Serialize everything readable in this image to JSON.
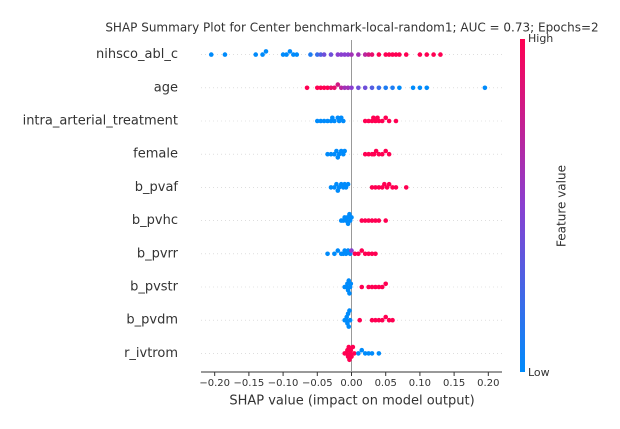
{
  "chart_data": {
    "type": "beeswarm",
    "title": "SHAP Summary Plot for Center benchmark-local-random1; AUC = 0.73; Epochs=2",
    "x_label": "SHAP value (impact on model output)",
    "xlim": [
      -0.22,
      0.22
    ],
    "xticks": [
      {
        "value": -0.2,
        "label": "−0.20"
      },
      {
        "value": -0.15,
        "label": "−0.15"
      },
      {
        "value": -0.1,
        "label": "−0.10"
      },
      {
        "value": -0.05,
        "label": "−0.05"
      },
      {
        "value": 0,
        "label": "0.00"
      },
      {
        "value": 0.05,
        "label": "0.05"
      },
      {
        "value": 0.1,
        "label": "0.10"
      },
      {
        "value": 0.15,
        "label": "0.15"
      },
      {
        "value": 0.2,
        "label": "0.20"
      }
    ],
    "colorbar": {
      "label": "Feature value",
      "high": "High",
      "low": "Low",
      "low_color": "#008bfb",
      "high_color": "#ff0052"
    },
    "features": [
      {
        "name": "nihsco_abl_c",
        "shap": [
          -0.205,
          -0.185,
          -0.14,
          -0.13,
          -0.125,
          -0.1,
          -0.095,
          -0.09,
          -0.085,
          -0.08,
          -0.06,
          -0.05,
          -0.045,
          -0.04,
          -0.03,
          -0.02,
          -0.015,
          -0.01,
          -0.005,
          0.0,
          0.01,
          0.02,
          0.025,
          0.03,
          0.04,
          0.05,
          0.055,
          0.06,
          0.065,
          0.07,
          0.08,
          0.1,
          0.11,
          0.12,
          0.13
        ],
        "feature_values": [
          0,
          0,
          0,
          0,
          0,
          0,
          0,
          0,
          0,
          0,
          0.1,
          0.2,
          0.3,
          0.4,
          0.4,
          0.5,
          0.5,
          0.5,
          0.5,
          0.6,
          0.6,
          0.7,
          0.8,
          0.9,
          1,
          1,
          1,
          1,
          1,
          1,
          1,
          1,
          1,
          1,
          1
        ]
      },
      {
        "name": "age",
        "shap": [
          -0.065,
          -0.05,
          -0.045,
          -0.04,
          -0.035,
          -0.03,
          -0.025,
          -0.02,
          -0.015,
          -0.01,
          -0.005,
          0.0,
          0.01,
          0.02,
          0.03,
          0.04,
          0.05,
          0.06,
          0.07,
          0.09,
          0.1,
          0.11,
          0.195
        ],
        "feature_values": [
          1,
          1,
          1,
          1,
          1,
          0.9,
          0.9,
          0.8,
          0.7,
          0.6,
          0.6,
          0.5,
          0.4,
          0.4,
          0.3,
          0.2,
          0.1,
          0.1,
          0,
          0,
          0,
          0,
          0
        ]
      },
      {
        "name": "intra_arterial_treatment",
        "shap": [
          -0.05,
          -0.045,
          -0.04,
          -0.035,
          -0.03,
          -0.028,
          -0.025,
          -0.02,
          -0.018,
          -0.015,
          -0.012,
          0.02,
          0.025,
          0.03,
          0.032,
          0.035,
          0.038,
          0.04,
          0.045,
          0.05,
          0.055,
          0.065
        ],
        "feature_values": [
          0,
          0,
          0,
          0,
          0,
          0,
          0,
          0,
          0,
          0,
          0,
          1,
          1,
          1,
          1,
          1,
          1,
          1,
          1,
          1,
          1,
          1
        ]
      },
      {
        "name": "female",
        "shap": [
          -0.035,
          -0.03,
          -0.025,
          -0.022,
          -0.02,
          -0.018,
          -0.015,
          -0.012,
          -0.01,
          0.02,
          0.025,
          0.03,
          0.033,
          0.036,
          0.04,
          0.045,
          0.05,
          0.055
        ],
        "feature_values": [
          0,
          0,
          0,
          0,
          0,
          0,
          0,
          0,
          0,
          1,
          1,
          1,
          1,
          1,
          1,
          1,
          1,
          1
        ]
      },
      {
        "name": "b_pvaf",
        "shap": [
          -0.03,
          -0.025,
          -0.022,
          -0.02,
          -0.018,
          -0.015,
          -0.012,
          -0.01,
          -0.008,
          -0.005,
          0.03,
          0.035,
          0.04,
          0.045,
          0.048,
          0.052,
          0.055,
          0.06,
          0.065,
          0.08
        ],
        "feature_values": [
          0,
          0,
          0,
          0,
          0,
          0,
          0,
          0,
          0,
          0,
          1,
          1,
          1,
          1,
          1,
          1,
          1,
          1,
          1,
          1
        ]
      },
      {
        "name": "b_pvhc",
        "shap": [
          -0.015,
          -0.012,
          -0.01,
          -0.008,
          -0.006,
          -0.005,
          -0.003,
          -0.002,
          0.0,
          0.015,
          0.02,
          0.025,
          0.03,
          0.035,
          0.04,
          0.05
        ],
        "feature_values": [
          0,
          0,
          0,
          0,
          0,
          0,
          0,
          0,
          0,
          1,
          1,
          1,
          1,
          1,
          1,
          1
        ]
      },
      {
        "name": "b_pvrr",
        "shap": [
          -0.035,
          -0.025,
          -0.02,
          -0.015,
          -0.012,
          -0.01,
          -0.008,
          -0.005,
          -0.002,
          0.0,
          0.005,
          0.01,
          0.015,
          0.02,
          0.025,
          0.03,
          0.035
        ],
        "feature_values": [
          0,
          0,
          0,
          0,
          0,
          0,
          0,
          0,
          0,
          0.5,
          1,
          1,
          1,
          1,
          1,
          1,
          1
        ]
      },
      {
        "name": "b_pvstr",
        "shap": [
          -0.01,
          -0.008,
          -0.006,
          -0.005,
          -0.004,
          -0.003,
          -0.002,
          -0.001,
          0.015,
          0.025,
          0.03,
          0.035,
          0.04,
          0.045,
          0.05
        ],
        "feature_values": [
          0,
          0,
          0,
          0,
          0,
          0,
          0,
          0,
          1,
          1,
          1,
          1,
          1,
          1,
          1
        ]
      },
      {
        "name": "b_pvdm",
        "shap": [
          -0.01,
          -0.008,
          -0.007,
          -0.006,
          -0.005,
          -0.004,
          -0.003,
          -0.002,
          0.012,
          0.03,
          0.035,
          0.04,
          0.045,
          0.05,
          0.055,
          0.06
        ],
        "feature_values": [
          0,
          0,
          0,
          0,
          0,
          0,
          0,
          0,
          1,
          1,
          1,
          1,
          1,
          1,
          1,
          1
        ]
      },
      {
        "name": "r_ivtrom",
        "shap": [
          -0.01,
          -0.008,
          -0.006,
          -0.005,
          -0.004,
          -0.003,
          -0.002,
          -0.001,
          0.0,
          0.002,
          0.004,
          0.01,
          0.015,
          0.02,
          0.025,
          0.03,
          0.04
        ],
        "feature_values": [
          1,
          1,
          1,
          1,
          1,
          1,
          1,
          1,
          1,
          1,
          1,
          0,
          0,
          0,
          0,
          0,
          0
        ]
      }
    ]
  }
}
